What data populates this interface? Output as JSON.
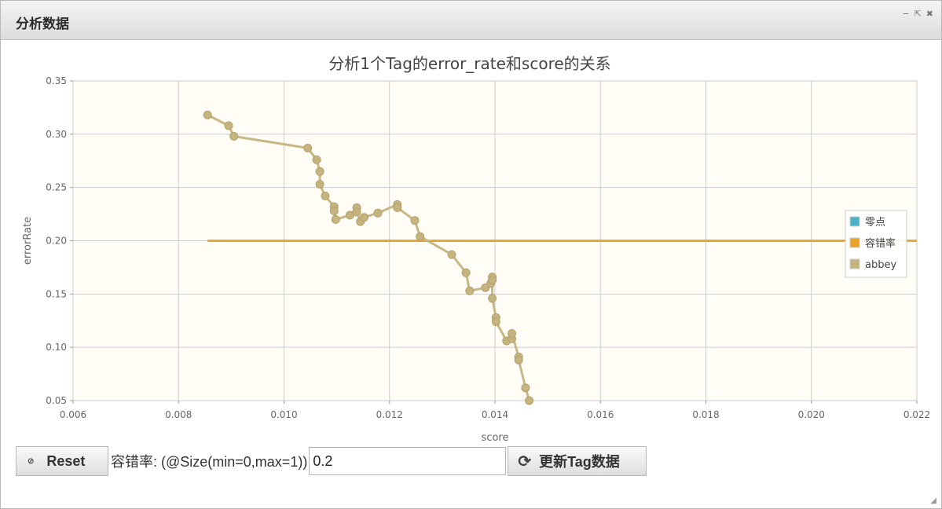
{
  "window": {
    "title": "分析数据",
    "controls": {
      "minimize": "−",
      "popout": "⇱",
      "close": "✖"
    }
  },
  "chart_data": {
    "type": "line",
    "title": "分析1个Tag的error_rate和score的关系",
    "xlabel": "score",
    "ylabel": "errorRate",
    "xlim": [
      0.006,
      0.022
    ],
    "ylim": [
      0.05,
      0.35
    ],
    "x_ticks": [
      "0.006",
      "0.008",
      "0.010",
      "0.012",
      "0.014",
      "0.016",
      "0.018",
      "0.020",
      "0.022"
    ],
    "y_ticks": [
      "0.05",
      "0.10",
      "0.15",
      "0.20",
      "0.25",
      "0.30",
      "0.35"
    ],
    "grid": true,
    "legend_position": "right",
    "series": [
      {
        "name": "零点",
        "color": "#4bb2c5",
        "points": []
      },
      {
        "name": "容错率",
        "color": "#eaa228",
        "points": [
          [
            0.00855,
            0.2
          ],
          [
            0.022,
            0.2
          ]
        ]
      },
      {
        "name": "abbey",
        "color": "#c5b47f",
        "points": [
          [
            0.00855,
            0.318
          ],
          [
            0.00895,
            0.308
          ],
          [
            0.00905,
            0.298
          ],
          [
            0.01045,
            0.287
          ],
          [
            0.01062,
            0.276
          ],
          [
            0.01068,
            0.265
          ],
          [
            0.01068,
            0.253
          ],
          [
            0.01078,
            0.242
          ],
          [
            0.01095,
            0.232
          ],
          [
            0.01095,
            0.228
          ],
          [
            0.01098,
            0.22
          ],
          [
            0.01125,
            0.224
          ],
          [
            0.01138,
            0.231
          ],
          [
            0.01138,
            0.227
          ],
          [
            0.01145,
            0.218
          ],
          [
            0.01152,
            0.222
          ],
          [
            0.01178,
            0.226
          ],
          [
            0.01215,
            0.234
          ],
          [
            0.01215,
            0.231
          ],
          [
            0.01248,
            0.219
          ],
          [
            0.01258,
            0.204
          ],
          [
            0.01318,
            0.187
          ],
          [
            0.01345,
            0.17
          ],
          [
            0.01352,
            0.153
          ],
          [
            0.01382,
            0.156
          ],
          [
            0.01392,
            0.16
          ],
          [
            0.01395,
            0.166
          ],
          [
            0.01395,
            0.163
          ],
          [
            0.01395,
            0.146
          ],
          [
            0.01402,
            0.128
          ],
          [
            0.01402,
            0.124
          ],
          [
            0.01422,
            0.106
          ],
          [
            0.01432,
            0.108
          ],
          [
            0.01432,
            0.113
          ],
          [
            0.01445,
            0.091
          ],
          [
            0.01445,
            0.088
          ],
          [
            0.01458,
            0.062
          ],
          [
            0.01465,
            0.05
          ]
        ]
      }
    ]
  },
  "toolbar": {
    "reset_label": "Reset",
    "reset_icon": "circle-icon",
    "tolerance_label": "容错率: (@Size(min=0,max=1))",
    "tolerance_value": "0.2",
    "update_label": "更新Tag数据",
    "update_icon": "refresh-icon"
  }
}
